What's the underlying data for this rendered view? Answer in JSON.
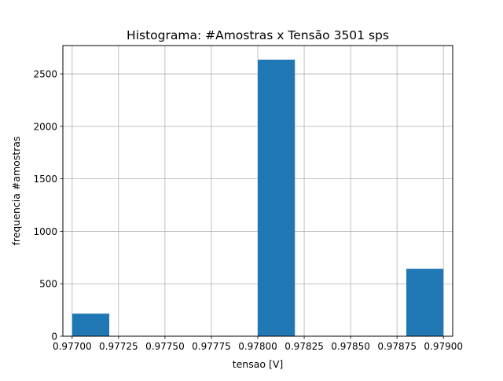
{
  "chart_data": {
    "type": "bar",
    "title": "Histograma: #Amostras x Tensão 3501 sps",
    "xlabel": "tensao [V]",
    "ylabel": "frequencia #amostras",
    "xlim": [
      0.97695,
      0.97905
    ],
    "ylim": [
      0,
      2770
    ],
    "grid": true,
    "bar_color": "#1f77b4",
    "grid_color": "#b0b0b0",
    "bin_edges": [
      0.977,
      0.9772,
      0.9774,
      0.9776,
      0.9778,
      0.978,
      0.9782,
      0.9784,
      0.9786,
      0.9788,
      0.979
    ],
    "values": [
      215,
      0,
      0,
      0,
      0,
      2636,
      0,
      0,
      0,
      643
    ],
    "x_ticks": [
      {
        "value": 0.977,
        "label": "0.97700"
      },
      {
        "value": 0.97725,
        "label": "0.97725"
      },
      {
        "value": 0.9775,
        "label": "0.97750"
      },
      {
        "value": 0.97775,
        "label": "0.97775"
      },
      {
        "value": 0.978,
        "label": "0.97800"
      },
      {
        "value": 0.97825,
        "label": "0.97825"
      },
      {
        "value": 0.9785,
        "label": "0.97850"
      },
      {
        "value": 0.97875,
        "label": "0.97875"
      },
      {
        "value": 0.979,
        "label": "0.97900"
      }
    ],
    "y_ticks": [
      {
        "value": 0,
        "label": "0"
      },
      {
        "value": 500,
        "label": "500"
      },
      {
        "value": 1000,
        "label": "1000"
      },
      {
        "value": 1500,
        "label": "1500"
      },
      {
        "value": 2000,
        "label": "2000"
      },
      {
        "value": 2500,
        "label": "2500"
      }
    ]
  }
}
